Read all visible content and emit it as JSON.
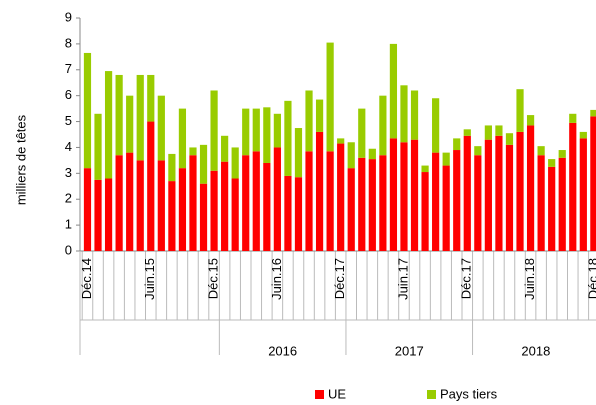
{
  "chart_data": {
    "type": "bar",
    "stacked": true,
    "y_label": "milliers de têtes",
    "categories": [
      "Déc.14",
      null,
      null,
      null,
      null,
      null,
      "Juin.15",
      null,
      null,
      null,
      null,
      null,
      "Déc.15",
      null,
      null,
      null,
      null,
      null,
      "Juin.16",
      null,
      null,
      null,
      null,
      null,
      "Déc.17",
      null,
      null,
      null,
      null,
      null,
      "Juin.17",
      null,
      null,
      null,
      null,
      null,
      "Déc.17",
      null,
      null,
      null,
      null,
      null,
      "Juin.18",
      null,
      null,
      null,
      null,
      null,
      "Déc.18"
    ],
    "year_labels": [
      "2016",
      "2017",
      "2018"
    ],
    "series": [
      {
        "name": "UE",
        "color": "#ff0000",
        "values": [
          3.2,
          2.75,
          2.8,
          3.7,
          3.8,
          3.5,
          5.0,
          3.5,
          2.7,
          3.2,
          3.7,
          2.6,
          3.1,
          3.45,
          2.8,
          3.7,
          3.85,
          3.4,
          4.0,
          2.9,
          2.85,
          3.85,
          4.6,
          3.85,
          4.15,
          3.2,
          3.6,
          3.55,
          3.7,
          4.35,
          4.2,
          4.3,
          3.05,
          3.8,
          3.3,
          3.9,
          4.45,
          3.7,
          4.3,
          4.45,
          4.1,
          4.6,
          4.85,
          3.7,
          3.25,
          3.6,
          4.95,
          4.35,
          5.2
        ]
      },
      {
        "name": "Pays tiers",
        "color": "#99cc00",
        "values": [
          4.45,
          2.55,
          4.15,
          3.1,
          2.2,
          3.3,
          1.8,
          2.5,
          1.05,
          2.3,
          0.3,
          1.5,
          3.1,
          1.0,
          1.2,
          1.8,
          1.65,
          2.15,
          1.3,
          2.9,
          1.9,
          2.35,
          1.25,
          4.2,
          0.2,
          1.0,
          1.9,
          0.4,
          2.3,
          3.65,
          2.2,
          1.9,
          0.25,
          2.1,
          0.5,
          0.45,
          0.25,
          0.35,
          0.55,
          0.4,
          0.45,
          1.65,
          0.4,
          0.35,
          0.3,
          0.3,
          0.35,
          0.25,
          0.25
        ]
      }
    ],
    "ylim": [
      0,
      9
    ],
    "yticks": [
      0,
      1,
      2,
      3,
      4,
      5,
      6,
      7,
      8,
      9
    ],
    "legend": "bottom"
  }
}
